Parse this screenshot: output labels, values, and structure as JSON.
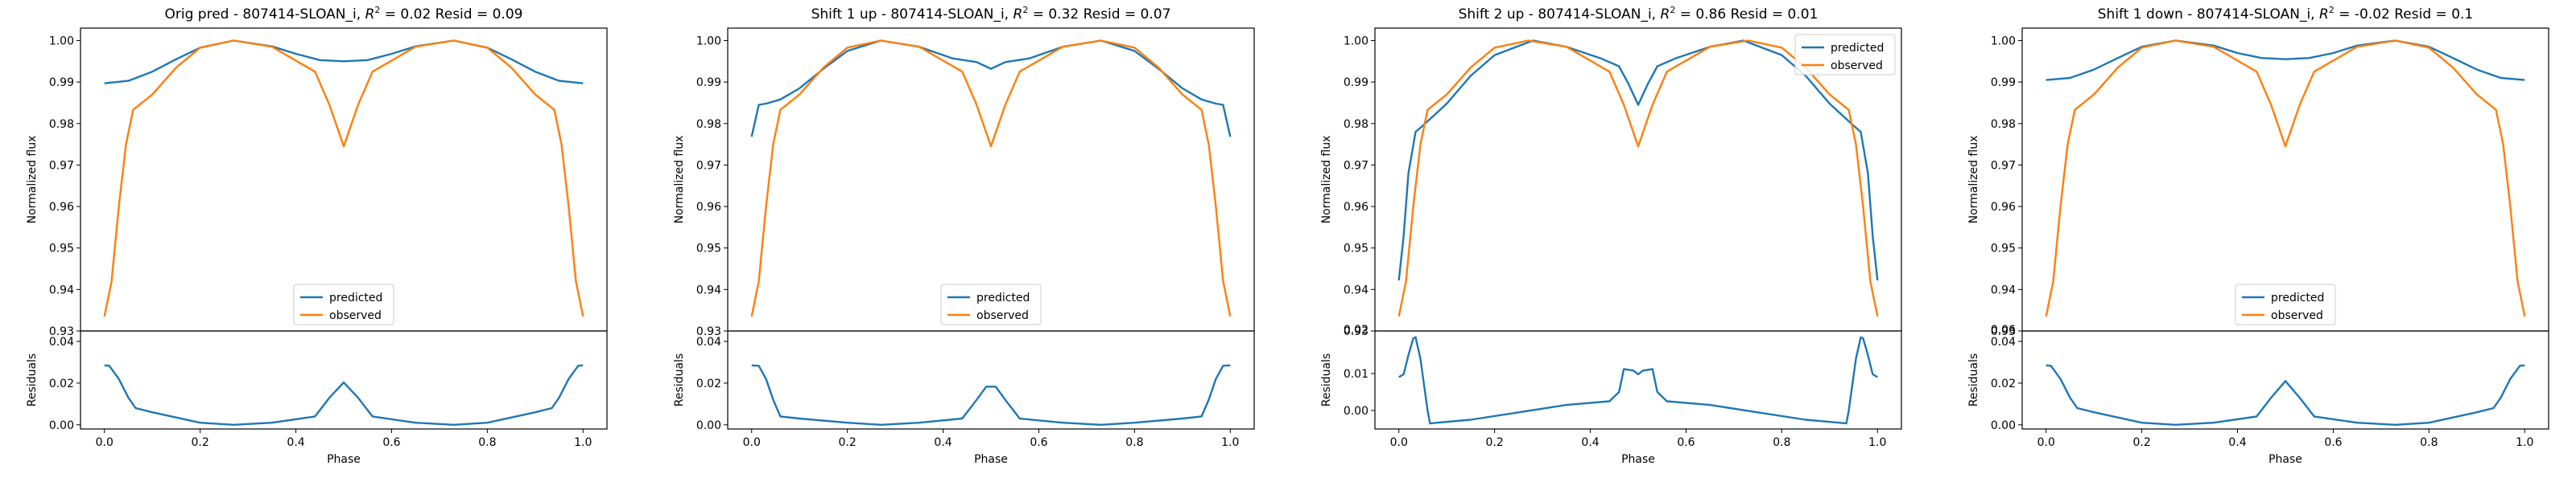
{
  "chart_data": [
    {
      "type": "line",
      "title": "Orig pred - 807414-SLOAN_i, $R^2 = 0.02$ Resid = 0.09",
      "title_parts": {
        "pre": "Orig pred - 807414-SLOAN_i, ",
        "r2": "0.02",
        "post": " Resid = 0.09"
      },
      "xlabel": "Phase",
      "top": {
        "ylabel": "Normalized flux",
        "ylim": [
          0.93,
          1.003
        ],
        "yticks": [
          0.93,
          0.94,
          0.95,
          0.96,
          0.97,
          0.98,
          0.99,
          1.0
        ],
        "ytick_labels": [
          "0.93",
          "0.94",
          "0.95",
          "0.96",
          "0.97",
          "0.98",
          "0.99",
          "1.00"
        ],
        "legend": "lower center",
        "series": [
          {
            "name": "predicted",
            "color": "#1f77b4",
            "x": [
              0,
              0.05,
              0.1,
              0.15,
              0.2,
              0.27,
              0.35,
              0.4,
              0.45,
              0.5,
              0.55,
              0.6,
              0.65,
              0.73,
              0.8,
              0.85,
              0.9,
              0.95,
              1.0
            ],
            "y": [
              0.9897,
              0.9903,
              0.9925,
              0.9955,
              0.9983,
              1.0,
              0.9986,
              0.9968,
              0.9953,
              0.995,
              0.9953,
              0.9968,
              0.9986,
              1.0,
              0.9983,
              0.9955,
              0.9925,
              0.9903,
              0.9897
            ]
          },
          {
            "name": "observed",
            "color": "#ff7f0e",
            "x": [
              0,
              0.015,
              0.03,
              0.045,
              0.06,
              0.1,
              0.15,
              0.2,
              0.27,
              0.35,
              0.44,
              0.47,
              0.5,
              0.53,
              0.56,
              0.65,
              0.73,
              0.8,
              0.85,
              0.9,
              0.94,
              0.955,
              0.97,
              0.985,
              1.0
            ],
            "y": [
              0.9335,
              0.942,
              0.96,
              0.975,
              0.9833,
              0.987,
              0.9935,
              0.9983,
              1.0,
              0.9985,
              0.9925,
              0.9845,
              0.9745,
              0.9845,
              0.9925,
              0.9985,
              1.0,
              0.9983,
              0.9935,
              0.987,
              0.9833,
              0.975,
              0.96,
              0.942,
              0.9335
            ]
          }
        ]
      },
      "bottom": {
        "ylabel": "Residuals",
        "ylim": [
          -0.002,
          0.045
        ],
        "yticks": [
          0.0,
          0.02,
          0.04
        ],
        "ytick_labels": [
          "0.00",
          "0.02",
          "0.04"
        ],
        "series": [
          {
            "name": "",
            "color": "#1f77b4",
            "x": [
              0,
              0.01,
              0.03,
              0.05,
              0.065,
              0.1,
              0.2,
              0.27,
              0.35,
              0.44,
              0.47,
              0.5,
              0.53,
              0.56,
              0.65,
              0.73,
              0.8,
              0.9,
              0.935,
              0.95,
              0.97,
              0.99,
              1.0
            ],
            "x_note": "",
            "y": [
              0.0285,
              0.0283,
              0.022,
              0.013,
              0.008,
              0.006,
              0.001,
              0.0,
              0.001,
              0.004,
              0.013,
              0.0203,
              0.013,
              0.004,
              0.001,
              0.0,
              0.001,
              0.006,
              0.008,
              0.013,
              0.022,
              0.0283,
              0.0285
            ]
          }
        ]
      },
      "xlim": [
        -0.05,
        1.05
      ],
      "xticks": [
        0.0,
        0.2,
        0.4,
        0.6,
        0.8,
        1.0
      ],
      "xtick_labels": [
        "0.0",
        "0.2",
        "0.4",
        "0.6",
        "0.8",
        "1.0"
      ]
    },
    {
      "type": "line",
      "title": "Shift 1 up - 807414-SLOAN_i, $R^2 = 0.32$ Resid = 0.07",
      "title_parts": {
        "pre": "Shift 1 up - 807414-SLOAN_i, ",
        "r2": "0.32",
        "post": " Resid = 0.07"
      },
      "xlabel": "Phase",
      "top": {
        "ylabel": "Normalized flux",
        "ylim": [
          0.93,
          1.003
        ],
        "yticks": [
          0.93,
          0.94,
          0.95,
          0.96,
          0.97,
          0.98,
          0.99,
          1.0
        ],
        "ytick_labels": [
          "0.93",
          "0.94",
          "0.95",
          "0.96",
          "0.97",
          "0.98",
          "0.99",
          "1.00"
        ],
        "legend": "lower center",
        "series": [
          {
            "name": "predicted",
            "color": "#1f77b4",
            "x": [
              0,
              0.015,
              0.03,
              0.06,
              0.1,
              0.15,
              0.2,
              0.27,
              0.35,
              0.42,
              0.47,
              0.5,
              0.53,
              0.58,
              0.65,
              0.73,
              0.8,
              0.85,
              0.9,
              0.94,
              0.97,
              0.985,
              1.0
            ],
            "y": [
              0.9768,
              0.9845,
              0.9848,
              0.9858,
              0.9885,
              0.9932,
              0.9975,
              1.0,
              0.9985,
              0.9957,
              0.9948,
              0.9932,
              0.9948,
              0.9957,
              0.9985,
              1.0,
              0.9975,
              0.9932,
              0.9885,
              0.9858,
              0.9848,
              0.9845,
              0.9768
            ]
          },
          {
            "name": "observed",
            "color": "#ff7f0e",
            "x": [
              0,
              0.015,
              0.03,
              0.045,
              0.06,
              0.1,
              0.15,
              0.2,
              0.27,
              0.35,
              0.44,
              0.47,
              0.5,
              0.53,
              0.56,
              0.65,
              0.73,
              0.8,
              0.85,
              0.9,
              0.94,
              0.955,
              0.97,
              0.985,
              1.0
            ],
            "y": [
              0.9335,
              0.942,
              0.96,
              0.975,
              0.9833,
              0.987,
              0.9935,
              0.9983,
              1.0,
              0.9985,
              0.9925,
              0.9845,
              0.9745,
              0.9845,
              0.9925,
              0.9985,
              1.0,
              0.9983,
              0.9935,
              0.987,
              0.9833,
              0.975,
              0.96,
              0.942,
              0.9335
            ]
          }
        ]
      },
      "bottom": {
        "ylabel": "Residuals",
        "ylim": [
          -0.002,
          0.045
        ],
        "yticks": [
          0.0,
          0.02,
          0.04
        ],
        "ytick_labels": [
          "0.00",
          "0.02",
          "0.04"
        ],
        "series": [
          {
            "name": "",
            "color": "#1f77b4",
            "x": [
              0,
              0.015,
              0.03,
              0.045,
              0.06,
              0.1,
              0.2,
              0.27,
              0.35,
              0.44,
              0.47,
              0.49,
              0.51,
              0.53,
              0.56,
              0.65,
              0.73,
              0.8,
              0.9,
              0.94,
              0.955,
              0.97,
              0.985,
              1.0
            ],
            "y": [
              0.0285,
              0.0283,
              0.022,
              0.012,
              0.004,
              0.003,
              0.001,
              0.0,
              0.001,
              0.003,
              0.012,
              0.0183,
              0.0183,
              0.012,
              0.003,
              0.001,
              0.0,
              0.001,
              0.003,
              0.004,
              0.012,
              0.022,
              0.0283,
              0.0285
            ]
          }
        ]
      },
      "xlim": [
        -0.05,
        1.05
      ],
      "xticks": [
        0.0,
        0.2,
        0.4,
        0.6,
        0.8,
        1.0
      ],
      "xtick_labels": [
        "0.0",
        "0.2",
        "0.4",
        "0.6",
        "0.8",
        "1.0"
      ]
    },
    {
      "type": "line",
      "title": "Shift 2 up - 807414-SLOAN_i, $R^2 = 0.86$ Resid = 0.01",
      "title_parts": {
        "pre": "Shift 2 up - 807414-SLOAN_i, ",
        "r2": "0.86",
        "post": " Resid = 0.01"
      },
      "xlabel": "Phase",
      "top": {
        "ylabel": "Normalized flux",
        "ylim": [
          0.93,
          1.003
        ],
        "yticks": [
          0.93,
          0.94,
          0.95,
          0.96,
          0.97,
          0.98,
          0.99,
          1.0
        ],
        "ytick_labels": [
          "0.93",
          "0.94",
          "0.95",
          "0.96",
          "0.97",
          "0.98",
          "0.99",
          "1.00"
        ],
        "legend": "upper right",
        "series": [
          {
            "name": "predicted",
            "color": "#1f77b4",
            "x": [
              0,
              0.01,
              0.02,
              0.035,
              0.05,
              0.1,
              0.15,
              0.2,
              0.28,
              0.35,
              0.42,
              0.46,
              0.48,
              0.5,
              0.52,
              0.54,
              0.58,
              0.65,
              0.72,
              0.8,
              0.85,
              0.9,
              0.95,
              0.965,
              0.98,
              0.99,
              1.0
            ],
            "y": [
              0.9422,
              0.953,
              0.968,
              0.978,
              0.9795,
              0.9848,
              0.9915,
              0.9965,
              1.0,
              0.9985,
              0.9958,
              0.9938,
              0.9895,
              0.9845,
              0.9895,
              0.9938,
              0.9958,
              0.9985,
              1.0,
              0.9965,
              0.9915,
              0.9848,
              0.9795,
              0.978,
              0.968,
              0.953,
              0.9422
            ]
          },
          {
            "name": "observed",
            "color": "#ff7f0e",
            "x": [
              0,
              0.015,
              0.03,
              0.045,
              0.06,
              0.1,
              0.15,
              0.2,
              0.27,
              0.35,
              0.44,
              0.47,
              0.5,
              0.53,
              0.56,
              0.65,
              0.73,
              0.8,
              0.85,
              0.9,
              0.94,
              0.955,
              0.97,
              0.985,
              1.0
            ],
            "y": [
              0.9335,
              0.942,
              0.96,
              0.975,
              0.9833,
              0.987,
              0.9935,
              0.9983,
              1.0,
              0.9985,
              0.9925,
              0.9845,
              0.9745,
              0.9845,
              0.9925,
              0.9985,
              1.0,
              0.9983,
              0.9935,
              0.987,
              0.9833,
              0.975,
              0.96,
              0.942,
              0.9335
            ]
          }
        ]
      },
      "bottom": {
        "ylabel": "Residuals",
        "ylim": [
          -0.005,
          0.0215
        ],
        "yticks": [
          0.0,
          0.01
        ],
        "ytick_labels": [
          "0.00",
          "0.01"
        ],
        "top_label": "0.02",
        "series": [
          {
            "name": "",
            "color": "#1f77b4",
            "x": [
              0,
              0.01,
              0.02,
              0.03,
              0.035,
              0.045,
              0.06,
              0.065,
              0.08,
              0.15,
              0.25,
              0.35,
              0.44,
              0.46,
              0.47,
              0.49,
              0.5,
              0.51,
              0.53,
              0.54,
              0.56,
              0.65,
              0.75,
              0.85,
              0.92,
              0.935,
              0.94,
              0.955,
              0.965,
              0.97,
              0.98,
              0.99,
              1.0
            ],
            "y": [
              0.009,
              0.0098,
              0.015,
              0.0195,
              0.0198,
              0.014,
              0.0,
              -0.0035,
              -0.0033,
              -0.0025,
              -0.0005,
              0.0015,
              0.0025,
              0.005,
              0.0112,
              0.0108,
              0.0098,
              0.0108,
              0.0112,
              0.005,
              0.0025,
              0.0015,
              -0.0005,
              -0.0025,
              -0.0033,
              -0.0035,
              0.0,
              0.014,
              0.0198,
              0.0195,
              0.015,
              0.0098,
              0.009
            ]
          }
        ]
      },
      "xlim": [
        -0.05,
        1.05
      ],
      "xticks": [
        0.0,
        0.2,
        0.4,
        0.6,
        0.8,
        1.0
      ],
      "xtick_labels": [
        "0.0",
        "0.2",
        "0.4",
        "0.6",
        "0.8",
        "1.0"
      ]
    },
    {
      "type": "line",
      "title": "Shift 1 down - 807414-SLOAN_i, $R^2 = -0.02$ Resid = 0.1",
      "title_parts": {
        "pre": "Shift 1 down - 807414-SLOAN_i, ",
        "r2": "-0.02",
        "post": " Resid = 0.1"
      },
      "xlabel": "Phase",
      "top": {
        "ylabel": "Normalized flux",
        "ylim": [
          0.93,
          1.003
        ],
        "yticks": [
          0.93,
          0.94,
          0.95,
          0.96,
          0.97,
          0.98,
          0.99,
          1.0
        ],
        "ytick_labels": [
          "0.93",
          "0.94",
          "0.95",
          "0.96",
          "0.97",
          "0.98",
          "0.99",
          "1.00"
        ],
        "legend": "lower center",
        "series": [
          {
            "name": "predicted",
            "color": "#1f77b4",
            "x": [
              0,
              0.05,
              0.1,
              0.15,
              0.2,
              0.27,
              0.35,
              0.4,
              0.45,
              0.5,
              0.55,
              0.6,
              0.65,
              0.73,
              0.8,
              0.85,
              0.9,
              0.95,
              1.0
            ],
            "y": [
              0.9905,
              0.991,
              0.993,
              0.9958,
              0.9985,
              1.0,
              0.9988,
              0.997,
              0.9958,
              0.9955,
              0.9958,
              0.997,
              0.9988,
              1.0,
              0.9985,
              0.9958,
              0.993,
              0.991,
              0.9905
            ]
          },
          {
            "name": "observed",
            "color": "#ff7f0e",
            "x": [
              0,
              0.015,
              0.03,
              0.045,
              0.06,
              0.1,
              0.15,
              0.2,
              0.27,
              0.35,
              0.44,
              0.47,
              0.5,
              0.53,
              0.56,
              0.65,
              0.73,
              0.8,
              0.85,
              0.9,
              0.94,
              0.955,
              0.97,
              0.985,
              1.0
            ],
            "y": [
              0.9335,
              0.942,
              0.96,
              0.975,
              0.9833,
              0.987,
              0.9935,
              0.9983,
              1.0,
              0.9985,
              0.9925,
              0.9845,
              0.9745,
              0.9845,
              0.9925,
              0.9985,
              1.0,
              0.9983,
              0.9935,
              0.987,
              0.9833,
              0.975,
              0.96,
              0.942,
              0.9335
            ]
          }
        ]
      },
      "bottom": {
        "ylabel": "Residuals",
        "ylim": [
          -0.002,
          0.045
        ],
        "yticks": [
          0.0,
          0.02,
          0.04
        ],
        "ytick_labels": [
          "0.00",
          "0.02",
          "0.04"
        ],
        "top_label": "0.06",
        "series": [
          {
            "name": "",
            "color": "#1f77b4",
            "x": [
              0,
              0.01,
              0.03,
              0.05,
              0.065,
              0.1,
              0.2,
              0.27,
              0.35,
              0.44,
              0.47,
              0.5,
              0.53,
              0.56,
              0.65,
              0.73,
              0.8,
              0.9,
              0.935,
              0.95,
              0.97,
              0.99,
              1.0
            ],
            "y": [
              0.0285,
              0.0283,
              0.022,
              0.013,
              0.008,
              0.006,
              0.001,
              0.0,
              0.001,
              0.004,
              0.013,
              0.021,
              0.013,
              0.004,
              0.001,
              0.0,
              0.001,
              0.006,
              0.008,
              0.013,
              0.022,
              0.0283,
              0.0285
            ]
          }
        ]
      },
      "xlim": [
        -0.05,
        1.05
      ],
      "xticks": [
        0.0,
        0.2,
        0.4,
        0.6,
        0.8,
        1.0
      ],
      "xtick_labels": [
        "0.0",
        "0.2",
        "0.4",
        "0.6",
        "0.8",
        "1.0"
      ]
    }
  ]
}
